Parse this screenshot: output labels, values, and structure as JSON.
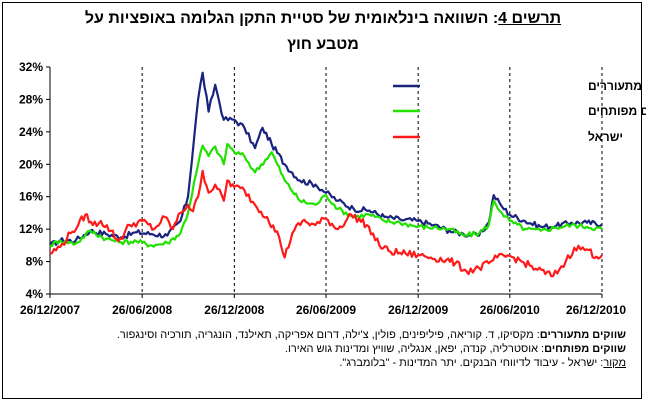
{
  "title": {
    "lead": "תרשים 4",
    "text": ": השוואה בינלאומית של סטיית התקן הגלומה באופציות על",
    "line2": "מטבע חוץ"
  },
  "chart_data": {
    "type": "line",
    "title": "תרשים 4: השוואה בינלאומית של סטיית התקן הגלומה באופציות על מטבע חוץ",
    "xlabel": "",
    "ylabel": "",
    "x_ticks": [
      "26/12/2007",
      "26/06/2008",
      "26/12/2008",
      "26/06/2009",
      "26/12/2009",
      "26/06/2010",
      "26/12/2010"
    ],
    "y_ticks": [
      "4%",
      "8%",
      "12%",
      "16%",
      "20%",
      "24%",
      "28%",
      "32%"
    ],
    "ylim": [
      4,
      32
    ],
    "xlim": [
      "2007-12-26",
      "2010-12-26"
    ],
    "grid": "vertical dashed at x ticks",
    "legend_position": "top-right",
    "series": [
      {
        "name": "ממוצע שווקים מתעוררים",
        "color": "#1a237e",
        "points": [
          [
            "2007-12-26",
            10.0
          ],
          [
            "2008-01-15",
            10.6
          ],
          [
            "2008-02-15",
            10.6
          ],
          [
            "2008-03-15",
            11.8
          ],
          [
            "2008-04-15",
            11.4
          ],
          [
            "2008-05-15",
            11.0
          ],
          [
            "2008-06-15",
            11.6
          ],
          [
            "2008-07-15",
            11.4
          ],
          [
            "2008-08-15",
            11.2
          ],
          [
            "2008-09-10",
            13.0
          ],
          [
            "2008-09-25",
            16.0
          ],
          [
            "2008-10-15",
            28.0
          ],
          [
            "2008-10-24",
            31.3
          ],
          [
            "2008-11-05",
            26.5
          ],
          [
            "2008-11-18",
            29.8
          ],
          [
            "2008-12-05",
            25.5
          ],
          [
            "2008-12-26",
            25.5
          ],
          [
            "2009-01-15",
            24.5
          ],
          [
            "2009-02-05",
            22.0
          ],
          [
            "2009-02-20",
            24.5
          ],
          [
            "2009-03-10",
            22.5
          ],
          [
            "2009-04-05",
            20.0
          ],
          [
            "2009-05-05",
            18.0
          ],
          [
            "2009-06-05",
            17.5
          ],
          [
            "2009-06-26",
            16.5
          ],
          [
            "2009-07-20",
            15.5
          ],
          [
            "2009-08-20",
            14.5
          ],
          [
            "2009-09-20",
            14.3
          ],
          [
            "2009-10-20",
            13.5
          ],
          [
            "2009-11-20",
            13.2
          ],
          [
            "2009-12-26",
            13.0
          ],
          [
            "2010-01-26",
            12.5
          ],
          [
            "2010-02-26",
            11.8
          ],
          [
            "2010-03-26",
            11.4
          ],
          [
            "2010-04-26",
            11.2
          ],
          [
            "2010-05-15",
            12.8
          ],
          [
            "2010-05-25",
            16.2
          ],
          [
            "2010-06-10",
            14.8
          ],
          [
            "2010-06-26",
            13.8
          ],
          [
            "2010-07-26",
            13.0
          ],
          [
            "2010-08-26",
            12.3
          ],
          [
            "2010-09-26",
            12.4
          ],
          [
            "2010-10-26",
            12.8
          ],
          [
            "2010-11-26",
            12.8
          ],
          [
            "2010-12-26",
            12.6
          ]
        ]
      },
      {
        "name": "ממוצע שווקים מפותחים",
        "color": "#22e000",
        "points": [
          [
            "2007-12-26",
            10.0
          ],
          [
            "2008-01-15",
            10.6
          ],
          [
            "2008-02-15",
            10.2
          ],
          [
            "2008-03-15",
            11.8
          ],
          [
            "2008-04-15",
            10.8
          ],
          [
            "2008-05-15",
            10.4
          ],
          [
            "2008-06-15",
            10.5
          ],
          [
            "2008-07-15",
            10.0
          ],
          [
            "2008-08-15",
            10.3
          ],
          [
            "2008-09-10",
            11.5
          ],
          [
            "2008-09-25",
            14.0
          ],
          [
            "2008-10-15",
            20.0
          ],
          [
            "2008-10-24",
            22.3
          ],
          [
            "2008-11-05",
            21.0
          ],
          [
            "2008-11-18",
            22.2
          ],
          [
            "2008-12-05",
            20.0
          ],
          [
            "2008-12-12",
            22.5
          ],
          [
            "2008-12-26",
            21.5
          ],
          [
            "2009-01-15",
            21.0
          ],
          [
            "2009-02-05",
            19.0
          ],
          [
            "2009-03-10",
            21.5
          ],
          [
            "2009-04-05",
            18.0
          ],
          [
            "2009-05-05",
            15.5
          ],
          [
            "2009-06-05",
            15.0
          ],
          [
            "2009-06-26",
            16.2
          ],
          [
            "2009-07-20",
            14.5
          ],
          [
            "2009-08-20",
            13.5
          ],
          [
            "2009-09-20",
            13.8
          ],
          [
            "2009-10-20",
            13.0
          ],
          [
            "2009-11-20",
            12.8
          ],
          [
            "2009-12-26",
            12.3
          ],
          [
            "2010-01-26",
            12.2
          ],
          [
            "2010-02-26",
            12.0
          ],
          [
            "2010-03-26",
            11.2
          ],
          [
            "2010-04-26",
            11.5
          ],
          [
            "2010-05-15",
            12.5
          ],
          [
            "2010-05-25",
            15.5
          ],
          [
            "2010-06-10",
            14.0
          ],
          [
            "2010-06-26",
            13.0
          ],
          [
            "2010-07-26",
            12.0
          ],
          [
            "2010-08-26",
            11.8
          ],
          [
            "2010-09-26",
            12.2
          ],
          [
            "2010-10-26",
            12.5
          ],
          [
            "2010-11-26",
            12.3
          ],
          [
            "2010-12-26",
            12.0
          ]
        ]
      },
      {
        "name": "ישראל",
        "color": "#ff1a1a",
        "points": [
          [
            "2007-12-26",
            9.0
          ],
          [
            "2008-01-15",
            9.8
          ],
          [
            "2008-02-05",
            11.5
          ],
          [
            "2008-02-20",
            12.5
          ],
          [
            "2008-03-05",
            13.8
          ],
          [
            "2008-03-20",
            12.5
          ],
          [
            "2008-04-05",
            13.0
          ],
          [
            "2008-04-25",
            11.8
          ],
          [
            "2008-05-10",
            10.5
          ],
          [
            "2008-06-01",
            12.5
          ],
          [
            "2008-06-26",
            13.0
          ],
          [
            "2008-07-20",
            12.0
          ],
          [
            "2008-08-10",
            13.5
          ],
          [
            "2008-08-26",
            12.0
          ],
          [
            "2008-09-10",
            14.0
          ],
          [
            "2008-09-25",
            15.0
          ],
          [
            "2008-10-05",
            14.2
          ],
          [
            "2008-10-15",
            16.0
          ],
          [
            "2008-10-24",
            19.2
          ],
          [
            "2008-11-05",
            16.5
          ],
          [
            "2008-11-18",
            17.5
          ],
          [
            "2008-12-05",
            15.5
          ],
          [
            "2008-12-12",
            18.0
          ],
          [
            "2008-12-26",
            17.2
          ],
          [
            "2009-01-15",
            16.8
          ],
          [
            "2009-02-05",
            15.0
          ],
          [
            "2009-03-01",
            13.5
          ],
          [
            "2009-03-25",
            11.0
          ],
          [
            "2009-04-05",
            8.5
          ],
          [
            "2009-04-20",
            11.5
          ],
          [
            "2009-05-10",
            13.0
          ],
          [
            "2009-06-05",
            12.5
          ],
          [
            "2009-06-26",
            13.3
          ],
          [
            "2009-07-20",
            12.0
          ],
          [
            "2009-08-15",
            13.8
          ],
          [
            "2009-09-15",
            12.5
          ],
          [
            "2009-10-10",
            10.0
          ],
          [
            "2009-11-01",
            9.2
          ],
          [
            "2009-12-01",
            9.0
          ],
          [
            "2009-12-26",
            8.8
          ],
          [
            "2010-01-20",
            8.5
          ],
          [
            "2010-02-20",
            8.2
          ],
          [
            "2010-03-10",
            7.8
          ],
          [
            "2010-04-01",
            6.8
          ],
          [
            "2010-04-26",
            7.2
          ],
          [
            "2010-05-15",
            7.8
          ],
          [
            "2010-06-01",
            8.5
          ],
          [
            "2010-06-26",
            8.7
          ],
          [
            "2010-07-20",
            8.0
          ],
          [
            "2010-08-20",
            7.0
          ],
          [
            "2010-09-20",
            6.2
          ],
          [
            "2010-10-15",
            8.0
          ],
          [
            "2010-11-01",
            9.7
          ],
          [
            "2010-11-26",
            9.5
          ],
          [
            "2010-12-15",
            8.6
          ],
          [
            "2010-12-26",
            8.8
          ]
        ]
      }
    ]
  },
  "notes": {
    "emerging_label": "שווקים מתעוררים",
    "emerging_text": ": מקסיקו, ד. קוריאה, פיליפינים, פולין, צ'ילה, דרום אפריקה, תאילנד, הונגריה, תורכיה וסינגפור.",
    "developed_label": "שווקים מפותחים",
    "developed_text": ": אוסטרליה, קנדה, יפאן, אנגליה, שוויץ ומדינות גוש האירו.",
    "source_label": "מקור",
    "source_text": ": ישראל - עיבוד לדיווחי הבנקים. יתר המדינות - \"בלומברג\"."
  }
}
